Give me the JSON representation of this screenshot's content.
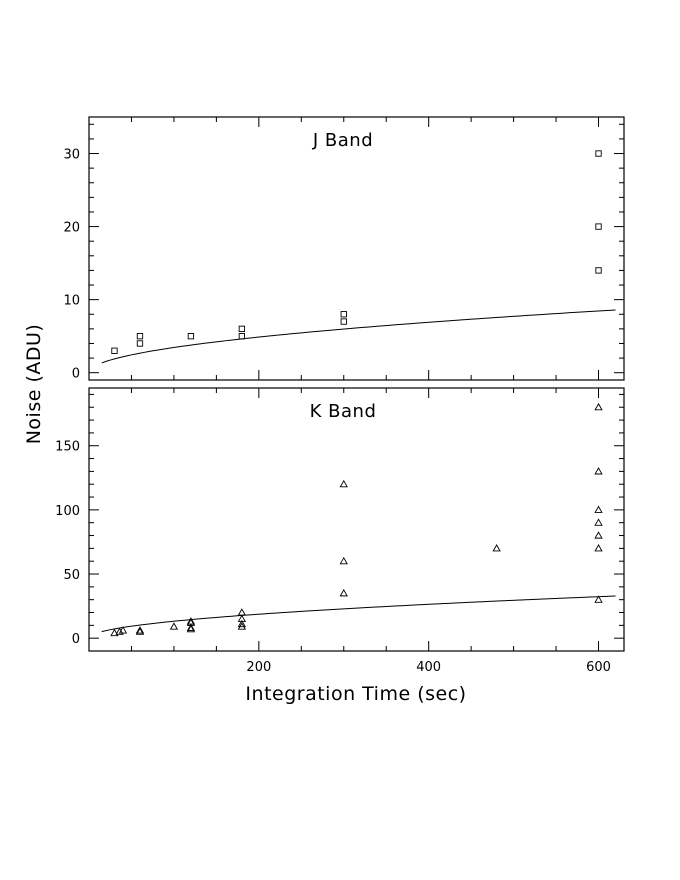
{
  "chart_data": [
    {
      "type": "scatter",
      "title": "J Band",
      "xlabel": "Integration Time (sec)",
      "ylabel": "Noise (ADU)",
      "xlim": [
        0,
        630
      ],
      "ylim": [
        -1,
        35
      ],
      "xticks": [
        200,
        400,
        600
      ],
      "yticks": [
        0,
        10,
        20,
        30
      ],
      "marker": "square",
      "points": [
        {
          "x": 30,
          "y": 3
        },
        {
          "x": 60,
          "y": 4
        },
        {
          "x": 60,
          "y": 5
        },
        {
          "x": 120,
          "y": 5
        },
        {
          "x": 180,
          "y": 5
        },
        {
          "x": 180,
          "y": 6
        },
        {
          "x": 300,
          "y": 7
        },
        {
          "x": 300,
          "y": 8
        },
        {
          "x": 600,
          "y": 14
        },
        {
          "x": 600,
          "y": 20
        },
        {
          "x": 600,
          "y": 30
        }
      ],
      "fit": {
        "form": "power",
        "a": 0.345,
        "b": 0.5,
        "xrange": [
          15,
          620
        ]
      }
    },
    {
      "type": "scatter",
      "title": "K Band",
      "xlabel": "Integration Time (sec)",
      "ylabel": "Noise (ADU)",
      "xlim": [
        0,
        630
      ],
      "ylim": [
        -10,
        195
      ],
      "xticks": [
        200,
        400,
        600
      ],
      "yticks": [
        0,
        50,
        100,
        150
      ],
      "marker": "triangle",
      "points": [
        {
          "x": 30,
          "y": 4
        },
        {
          "x": 36,
          "y": 5
        },
        {
          "x": 40,
          "y": 6
        },
        {
          "x": 60,
          "y": 5
        },
        {
          "x": 60,
          "y": 6
        },
        {
          "x": 100,
          "y": 9
        },
        {
          "x": 120,
          "y": 7
        },
        {
          "x": 120,
          "y": 8
        },
        {
          "x": 120,
          "y": 12
        },
        {
          "x": 120,
          "y": 13
        },
        {
          "x": 180,
          "y": 9
        },
        {
          "x": 180,
          "y": 11
        },
        {
          "x": 180,
          "y": 15
        },
        {
          "x": 180,
          "y": 20
        },
        {
          "x": 300,
          "y": 35
        },
        {
          "x": 300,
          "y": 60
        },
        {
          "x": 300,
          "y": 120
        },
        {
          "x": 480,
          "y": 70
        },
        {
          "x": 600,
          "y": 30
        },
        {
          "x": 600,
          "y": 70
        },
        {
          "x": 600,
          "y": 80
        },
        {
          "x": 600,
          "y": 90
        },
        {
          "x": 600,
          "y": 100
        },
        {
          "x": 600,
          "y": 130
        },
        {
          "x": 600,
          "y": 180
        }
      ],
      "fit": {
        "form": "power",
        "a": 1.32,
        "b": 0.5,
        "xrange": [
          15,
          620
        ]
      }
    }
  ]
}
